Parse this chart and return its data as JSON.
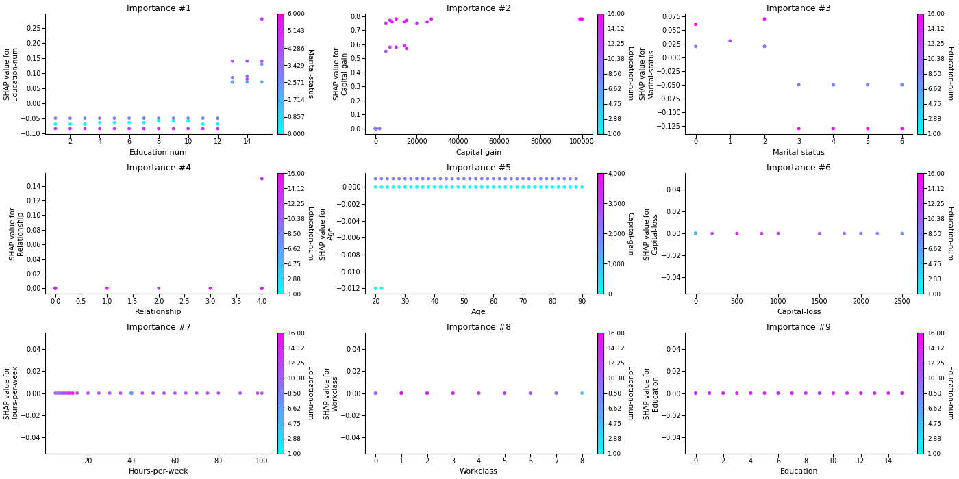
{
  "subplots": [
    {
      "title": "Importance #1",
      "xlabel": "Education-num",
      "ylabel": "SHAP value for\nEducation-num",
      "color_label": "Marital-status",
      "color_range": [
        0.0,
        6.0
      ],
      "color_ticks": [
        0.0,
        0.857,
        1.714,
        2.571,
        3.429,
        4.286,
        5.143,
        6.0
      ],
      "color_tick_labels": [
        "0.000",
        "0.857",
        "1.714",
        "2.571",
        "3.429",
        "4.286",
        "5.143",
        "6.000"
      ],
      "cmap": "cool",
      "x_data": [
        1,
        2,
        3,
        4,
        5,
        6,
        7,
        8,
        9,
        10,
        11,
        12,
        1,
        2,
        3,
        4,
        5,
        6,
        7,
        8,
        9,
        10,
        11,
        12,
        13,
        14,
        15,
        1,
        2,
        3,
        4,
        5,
        6,
        7,
        8,
        9,
        10,
        11,
        12,
        13,
        14,
        15,
        13,
        14,
        15,
        13,
        14,
        15
      ],
      "y_data": [
        -0.07,
        -0.07,
        -0.07,
        -0.065,
        -0.065,
        -0.065,
        -0.065,
        -0.06,
        -0.06,
        -0.06,
        -0.07,
        -0.07,
        -0.05,
        -0.05,
        -0.05,
        -0.05,
        -0.05,
        -0.05,
        -0.05,
        -0.05,
        -0.05,
        -0.05,
        -0.05,
        -0.05,
        0.085,
        0.09,
        0.13,
        -0.085,
        -0.085,
        -0.085,
        -0.085,
        -0.085,
        -0.085,
        -0.085,
        -0.085,
        -0.085,
        -0.085,
        -0.085,
        -0.085,
        0.07,
        0.08,
        0.28,
        0.07,
        0.07,
        0.07,
        0.14,
        0.14,
        0.14
      ],
      "c_data": [
        0,
        0,
        0,
        0,
        0,
        0,
        0,
        0,
        0,
        0,
        0,
        0,
        3,
        3,
        3,
        3,
        3,
        3,
        3,
        3,
        3,
        3,
        3,
        3,
        3,
        3,
        3,
        5,
        5,
        5,
        5,
        5,
        5,
        5,
        5,
        5,
        5,
        5,
        5,
        5,
        5,
        5,
        2,
        2,
        2,
        4,
        4,
        4
      ]
    },
    {
      "title": "Importance #2",
      "xlabel": "Capital-gain",
      "ylabel": "SHAP value for\nCapital-gain",
      "color_label": "Education-num",
      "color_range": [
        1.0,
        16.0
      ],
      "color_ticks": [
        1.0,
        2.88,
        4.75,
        6.62,
        8.5,
        10.38,
        12.25,
        14.12,
        16.0
      ],
      "color_tick_labels": [
        "1.00",
        "2.88",
        "4.75",
        "6.62",
        "8.50",
        "10.38",
        "12.25",
        "14.12",
        "16.00"
      ],
      "cmap": "cool",
      "x_data": [
        0,
        0,
        0,
        0,
        0,
        0,
        0,
        0,
        0,
        0,
        500,
        2000,
        5000,
        7000,
        8000,
        10000,
        14000,
        15000,
        20000,
        25000,
        27000,
        99000,
        100000,
        5000,
        7000,
        10000,
        14000,
        15000
      ],
      "y_data": [
        0,
        0,
        0,
        0,
        0,
        0,
        0,
        0,
        0,
        0,
        0.0,
        0.0,
        0.75,
        0.77,
        0.76,
        0.78,
        0.76,
        0.77,
        0.75,
        0.76,
        0.78,
        0.78,
        0.78,
        0.55,
        0.58,
        0.58,
        0.59,
        0.57
      ],
      "c_data": [
        9,
        10,
        11,
        12,
        13,
        14,
        15,
        16,
        8,
        7,
        9,
        10,
        14,
        14,
        15,
        16,
        14,
        14,
        13,
        14,
        15,
        15,
        16,
        12,
        13,
        15,
        13,
        14
      ]
    },
    {
      "title": "Importance #3",
      "xlabel": "Marital-status",
      "ylabel": "SHAP value for\nMarital-status",
      "color_label": "Education-num",
      "color_range": [
        1.0,
        16.0
      ],
      "color_ticks": [
        1.0,
        2.88,
        4.75,
        6.62,
        8.5,
        10.38,
        12.25,
        14.12,
        16.0
      ],
      "color_tick_labels": [
        "1.00",
        "2.88",
        "4.75",
        "6.62",
        "8.50",
        "10.38",
        "12.25",
        "14.12",
        "16.00"
      ],
      "cmap": "cool",
      "x_data": [
        0,
        0,
        1,
        2,
        2,
        2,
        3,
        4,
        4,
        5,
        5,
        6,
        6,
        3,
        4,
        5,
        6
      ],
      "y_data": [
        0.06,
        0.02,
        0.03,
        0.07,
        0.02,
        0.02,
        -0.05,
        -0.05,
        -0.05,
        -0.05,
        -0.05,
        -0.05,
        -0.05,
        -0.13,
        -0.13,
        -0.13,
        -0.13
      ],
      "c_data": [
        16,
        9,
        12,
        16,
        9,
        9,
        9,
        9,
        8,
        9,
        8,
        9,
        8,
        16,
        16,
        16,
        16
      ]
    },
    {
      "title": "Importance #4",
      "xlabel": "Relationship",
      "ylabel": "SHAP value for\nRelationship",
      "color_label": "Education-num",
      "color_range": [
        1.0,
        16.0
      ],
      "color_ticks": [
        1.0,
        2.88,
        4.75,
        6.62,
        8.5,
        10.38,
        12.25,
        14.12,
        16.0
      ],
      "color_tick_labels": [
        "1.00",
        "2.88",
        "4.75",
        "6.62",
        "8.50",
        "10.38",
        "12.25",
        "14.12",
        "16.00"
      ],
      "cmap": "cool",
      "x_data": [
        0,
        0,
        0,
        0,
        0,
        1,
        2,
        3,
        4,
        4,
        4,
        4,
        4,
        4,
        4
      ],
      "y_data": [
        0.0,
        0.0,
        0.0,
        0.0,
        0.0,
        0.0,
        0.0,
        0.0,
        0.15,
        0.0,
        0.0,
        0.0,
        0.0,
        0.0,
        0.0
      ],
      "c_data": [
        15,
        12,
        16,
        14,
        13,
        14,
        12,
        14,
        14,
        9,
        8,
        7,
        6,
        5,
        16
      ]
    },
    {
      "title": "Importance #5",
      "xlabel": "Age",
      "ylabel": "SHAP value for\nAge",
      "color_label": "Capital-gain",
      "color_range": [
        0,
        4000
      ],
      "color_ticks": [
        0,
        1000,
        2000,
        3000,
        4000
      ],
      "color_tick_labels": [
        "0",
        "1,000",
        "2,000",
        "3,000",
        "4,000"
      ],
      "cmap": "cool",
      "x_data": [
        20,
        22,
        24,
        26,
        28,
        30,
        32,
        34,
        36,
        38,
        40,
        42,
        44,
        46,
        48,
        50,
        52,
        54,
        56,
        58,
        60,
        62,
        64,
        66,
        68,
        70,
        72,
        74,
        76,
        78,
        80,
        82,
        84,
        86,
        88,
        90,
        20,
        22,
        24,
        26,
        28,
        30,
        32,
        34,
        36,
        38,
        40,
        42,
        44,
        46,
        48,
        50,
        52,
        54,
        56,
        58,
        60,
        62,
        64,
        66,
        68,
        70,
        72,
        74,
        76,
        78,
        80,
        82,
        84,
        86,
        88,
        20,
        22
      ],
      "y_data": [
        0.0,
        0.0,
        0.0,
        0.0,
        0.0,
        0.0,
        0.0,
        0.0,
        0.0,
        0.0,
        0.0,
        0.0,
        0.0,
        0.0,
        0.0,
        0.0,
        0.0,
        0.0,
        0.0,
        0.0,
        0.0,
        0.0,
        0.0,
        0.0,
        0.0,
        0.0,
        0.0,
        0.0,
        0.0,
        0.0,
        0.0,
        0.0,
        0.0,
        0.0,
        0.0,
        0.0,
        0.001,
        0.001,
        0.001,
        0.001,
        0.001,
        0.001,
        0.001,
        0.001,
        0.001,
        0.001,
        0.001,
        0.001,
        0.001,
        0.001,
        0.001,
        0.001,
        0.001,
        0.001,
        0.001,
        0.001,
        0.001,
        0.001,
        0.001,
        0.001,
        0.001,
        0.001,
        0.001,
        0.001,
        0.001,
        0.001,
        0.001,
        0.001,
        0.001,
        0.001,
        0.001,
        -0.012,
        -0.012
      ],
      "c_data": [
        0,
        0,
        0,
        0,
        0,
        0,
        0,
        0,
        0,
        0,
        0,
        0,
        0,
        0,
        0,
        0,
        0,
        0,
        0,
        0,
        0,
        0,
        0,
        0,
        0,
        0,
        0,
        0,
        0,
        0,
        0,
        0,
        0,
        0,
        0,
        0,
        2000,
        2000,
        2000,
        2000,
        2000,
        2000,
        2000,
        2000,
        2000,
        2000,
        2000,
        2000,
        2000,
        2000,
        2000,
        2000,
        2000,
        2000,
        2000,
        2000,
        2000,
        2000,
        2000,
        2000,
        2000,
        2000,
        2000,
        2000,
        2000,
        2000,
        2000,
        2000,
        2000,
        2000,
        2000,
        0,
        0
      ]
    },
    {
      "title": "Importance #6",
      "xlabel": "Capital-loss",
      "ylabel": "SHAP value for\nCapital-loss",
      "color_label": "Education-num",
      "color_range": [
        1.0,
        16.0
      ],
      "color_ticks": [
        1.0,
        2.88,
        4.75,
        6.62,
        8.5,
        10.38,
        12.25,
        14.12,
        16.0
      ],
      "color_tick_labels": [
        "1.00",
        "2.88",
        "4.75",
        "6.62",
        "8.50",
        "10.38",
        "12.25",
        "14.12",
        "16.00"
      ],
      "cmap": "cool",
      "x_data": [
        0,
        0,
        0,
        0,
        0,
        0,
        0,
        0,
        200,
        500,
        800,
        1000,
        1500,
        1800,
        2000,
        2200,
        2500
      ],
      "y_data": [
        0.0,
        0.0,
        0.0,
        0.0,
        0.0,
        0.0,
        0.0,
        0.0,
        0.0,
        0.0,
        0.0,
        0.0,
        0.0,
        0.0,
        0.0,
        0.0,
        0.0
      ],
      "c_data": [
        14,
        12,
        10,
        9,
        8,
        7,
        6,
        5,
        12,
        14,
        13,
        12,
        11,
        10,
        9,
        8,
        7
      ]
    },
    {
      "title": "Importance #7",
      "xlabel": "Hours-per-week",
      "ylabel": "SHAP value for\nHours-per-week",
      "color_label": "Education-num",
      "color_range": [
        1.0,
        16.0
      ],
      "color_ticks": [
        1.0,
        2.88,
        4.75,
        6.62,
        8.5,
        10.38,
        12.25,
        14.12,
        16.0
      ],
      "color_tick_labels": [
        "1.00",
        "2.88",
        "4.75",
        "6.62",
        "8.50",
        "10.38",
        "12.25",
        "14.12",
        "16.00"
      ],
      "cmap": "cool",
      "x_data": [
        5,
        10,
        15,
        20,
        25,
        30,
        35,
        40,
        40,
        40,
        40,
        40,
        40,
        40,
        45,
        50,
        55,
        60,
        65,
        70,
        75,
        80,
        90,
        100,
        98,
        6,
        7,
        8,
        9,
        11,
        12,
        13
      ],
      "y_data": [
        0.0,
        0.0,
        0.0,
        0.0,
        0.0,
        0.0,
        0.0,
        0.0,
        0.0,
        0.0,
        0.0,
        0.0,
        0.0,
        0.0,
        0.0,
        0.0,
        0.0,
        0.0,
        0.0,
        0.0,
        0.0,
        0.0,
        0.0,
        0.0,
        0.0,
        0.0,
        0.0,
        0.0,
        0.0,
        0.0,
        0.0,
        0.0
      ],
      "c_data": [
        12,
        12,
        12,
        12,
        12,
        12,
        12,
        14,
        12,
        10,
        9,
        8,
        7,
        6,
        12,
        12,
        12,
        12,
        12,
        12,
        12,
        12,
        12,
        12,
        12,
        9,
        10,
        11,
        12,
        13,
        14,
        15
      ]
    },
    {
      "title": "Importance #8",
      "xlabel": "Workclass",
      "ylabel": "SHAP value for\nWorkclass",
      "color_label": "Education-num",
      "color_range": [
        1.0,
        16.0
      ],
      "color_ticks": [
        1.0,
        2.88,
        4.75,
        6.62,
        8.5,
        10.38,
        12.25,
        14.12,
        16.0
      ],
      "color_tick_labels": [
        "1.00",
        "2.88",
        "4.75",
        "6.62",
        "8.50",
        "10.38",
        "12.25",
        "14.12",
        "16.00"
      ],
      "cmap": "cool",
      "x_data": [
        0,
        0,
        0,
        1,
        2,
        3,
        4,
        5,
        6,
        7,
        8,
        1,
        2,
        3,
        4,
        5,
        6,
        7
      ],
      "y_data": [
        0.0,
        0.0,
        0.0,
        0.0,
        0.0,
        0.0,
        0.0,
        0.0,
        0.0,
        0.0,
        0.0,
        0.0,
        0.0,
        0.0,
        0.0,
        0.0,
        0.0,
        0.0
      ],
      "c_data": [
        14,
        12,
        10,
        12,
        14,
        10,
        9,
        8,
        7,
        6,
        5,
        16,
        15,
        14,
        13,
        12,
        11,
        10
      ]
    },
    {
      "title": "Importance #9",
      "xlabel": "Education",
      "ylabel": "SHAP value for\nEducation",
      "color_label": "Education-num",
      "color_range": [
        1.0,
        16.0
      ],
      "color_ticks": [
        1.0,
        2.88,
        4.75,
        6.62,
        8.5,
        10.38,
        12.25,
        14.12,
        16.0
      ],
      "color_tick_labels": [
        "1.00",
        "2.88",
        "4.75",
        "6.62",
        "8.50",
        "10.38",
        "12.25",
        "14.12",
        "16.00"
      ],
      "cmap": "cool",
      "x_data": [
        0,
        1,
        2,
        3,
        4,
        5,
        6,
        7,
        8,
        9,
        10,
        11,
        12,
        13,
        14,
        15,
        0,
        1,
        2,
        3,
        4,
        5,
        6,
        7,
        8,
        9,
        10,
        11,
        12,
        13,
        14,
        15
      ],
      "y_data": [
        0.0,
        0.0,
        0.0,
        0.0,
        0.0,
        0.0,
        0.0,
        0.0,
        0.0,
        0.0,
        0.0,
        0.0,
        0.0,
        0.0,
        0.0,
        0.0,
        0.0,
        0.0,
        0.0,
        0.0,
        0.0,
        0.0,
        0.0,
        0.0,
        0.0,
        0.0,
        0.0,
        0.0,
        0.0,
        0.0,
        0.0,
        0.0
      ],
      "c_data": [
        9,
        9,
        9,
        9,
        9,
        9,
        9,
        9,
        9,
        9,
        9,
        9,
        9,
        9,
        9,
        9,
        14,
        14,
        14,
        14,
        14,
        14,
        14,
        14,
        14,
        14,
        14,
        14,
        14,
        14,
        14,
        14
      ]
    }
  ]
}
